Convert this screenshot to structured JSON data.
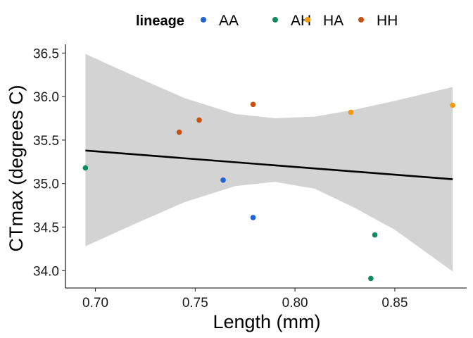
{
  "chart_data": {
    "type": "scatter",
    "xlabel": "Length (mm)",
    "ylabel": "CTmax (degrees C)",
    "xlim": [
      0.685,
      0.886
    ],
    "ylim": [
      33.8,
      36.6
    ],
    "x_ticks": [
      0.7,
      0.75,
      0.8,
      0.85
    ],
    "x_tick_labels": [
      "0.70",
      "0.75",
      "0.80",
      "0.85"
    ],
    "y_ticks": [
      34.0,
      34.5,
      35.0,
      35.5,
      36.0,
      36.5
    ],
    "y_tick_labels": [
      "34.0",
      "34.5",
      "35.0",
      "35.5",
      "36.0",
      "36.5"
    ],
    "grid": false,
    "legend": {
      "title": "lineage",
      "position": "top",
      "entries": [
        "AA",
        "AH",
        "HA",
        "HH"
      ]
    },
    "series": [
      {
        "name": "AA",
        "color": "#1d63d6",
        "points": [
          [
            0.764,
            35.04
          ],
          [
            0.779,
            34.61
          ]
        ]
      },
      {
        "name": "AH",
        "color": "#0f8a5f",
        "points": [
          [
            0.695,
            35.18
          ],
          [
            0.84,
            34.41
          ],
          [
            0.838,
            33.91
          ]
        ]
      },
      {
        "name": "HA",
        "color": "#f59a0c",
        "points": [
          [
            0.828,
            35.82
          ],
          [
            0.879,
            35.9
          ]
        ]
      },
      {
        "name": "HH",
        "color": "#c94f0f",
        "points": [
          [
            0.742,
            35.59
          ],
          [
            0.752,
            35.73
          ],
          [
            0.779,
            35.91
          ]
        ]
      }
    ],
    "trend_line": {
      "color": "#000000",
      "x": [
        0.695,
        0.879
      ],
      "y": [
        35.38,
        35.05
      ]
    },
    "confidence_band": {
      "color": "#d3d3d3",
      "x": [
        0.695,
        0.72,
        0.745,
        0.77,
        0.79,
        0.81,
        0.83,
        0.85,
        0.879
      ],
      "lower": [
        34.28,
        34.54,
        34.79,
        34.97,
        35.02,
        34.94,
        34.72,
        34.47,
        33.99
      ],
      "upper": [
        36.49,
        36.23,
        35.98,
        35.8,
        35.75,
        35.77,
        35.85,
        35.95,
        36.11
      ]
    }
  }
}
